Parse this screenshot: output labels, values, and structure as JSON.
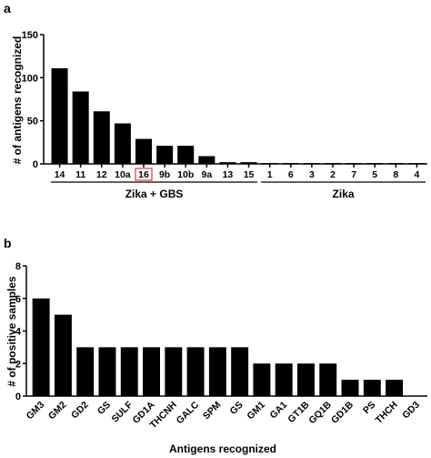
{
  "chart_data": [
    {
      "type": "bar",
      "panel": "a",
      "ylabel": "# of antigens recognized",
      "ylim": [
        0,
        150
      ],
      "yticks": [
        0,
        50,
        100,
        150
      ],
      "categories": [
        "14",
        "11",
        "12",
        "10a",
        "16",
        "9b",
        "10b",
        "9a",
        "13",
        "15",
        "1",
        "6",
        "3",
        "2",
        "7",
        "5",
        "8",
        "4"
      ],
      "values": [
        111,
        84,
        61,
        47,
        29,
        21,
        21,
        9,
        2,
        2,
        1,
        1,
        1,
        1,
        1,
        1,
        1,
        1
      ],
      "highlighted_category": "16",
      "highlight_color": "#e53935",
      "groups": [
        {
          "label": "Zika + GBS",
          "categories": [
            "14",
            "11",
            "12",
            "10a",
            "16",
            "9b",
            "10b",
            "9a",
            "13",
            "15"
          ]
        },
        {
          "label": "Zika",
          "categories": [
            "1",
            "6",
            "3",
            "2",
            "7",
            "5",
            "8",
            "4"
          ]
        }
      ]
    },
    {
      "type": "bar",
      "panel": "b",
      "ylabel": "# of positive samples",
      "xlabel": "Antigens recognized",
      "ylim": [
        0,
        8
      ],
      "yticks": [
        0,
        2,
        4,
        6,
        8
      ],
      "categories": [
        "GM3",
        "GM2",
        "GD2",
        "GS",
        "SULF",
        "GD1A",
        "THCNH",
        "GALC",
        "SPM",
        "GS",
        "GM1",
        "GA1",
        "GT1B",
        "GQ1B",
        "GD1B",
        "PS",
        "THCH",
        "GD3"
      ],
      "values": [
        6,
        5,
        3,
        3,
        3,
        3,
        3,
        3,
        3,
        3,
        2,
        2,
        2,
        2,
        1,
        1,
        1,
        0
      ]
    }
  ]
}
